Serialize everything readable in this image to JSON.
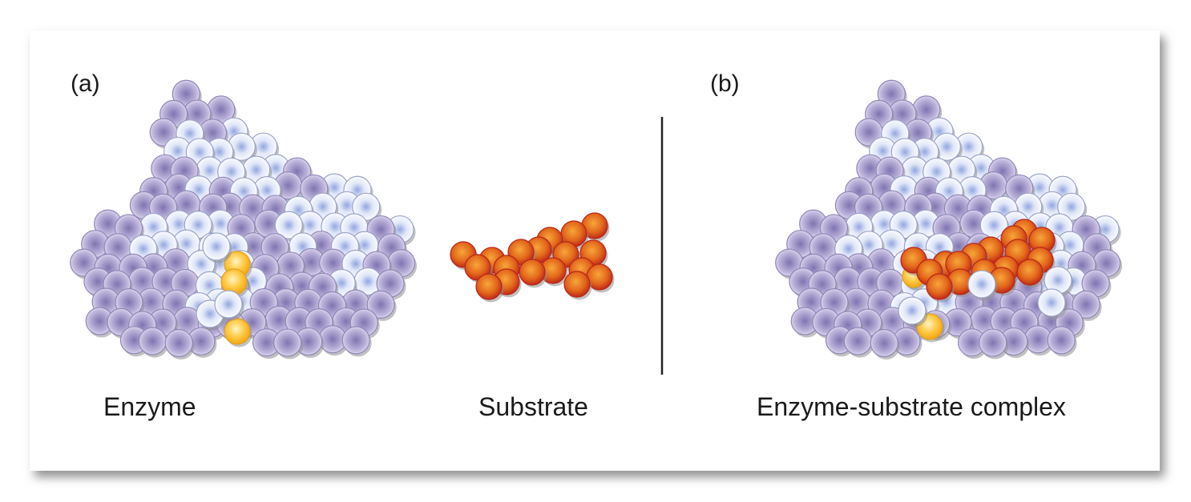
{
  "panels": {
    "a": {
      "label": "(a)",
      "enzyme_caption": "Enzyme",
      "substrate_caption": "Substrate"
    },
    "b": {
      "label": "(b)",
      "complex_caption": "Enzyme-substrate complex"
    }
  },
  "colors": {
    "background": "#ffffff",
    "frame_fill": "#ffffff",
    "frame_shadow": "#9a9a9a",
    "enzyme_purple_center": "#8a7fb8",
    "enzyme_purple_edge": "#d9d4ea",
    "enzyme_white_center": "#a9b7e3",
    "enzyme_white_edge": "#ffffff",
    "active_site_yellow": "#ffc533",
    "substrate_center": "#f08a1c",
    "substrate_edge": "#c0261a",
    "divider": "#222222"
  }
}
